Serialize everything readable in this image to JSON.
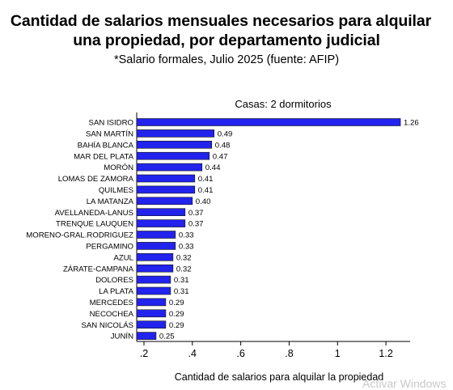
{
  "title_line1": "Cantidad de salarios mensuales necesarios para alquilar",
  "title_line2": "una propiedad, por departamento judicial",
  "subtitle": "*Salario formales, Julio 2025 (fuente: AFIP)",
  "watermark": "Activar Windows",
  "chart_data": {
    "type": "bar",
    "orientation": "horizontal",
    "title": "Casas: 2 dormitorios",
    "xlabel": "Cantidad de salarios para alquilar la propiedad",
    "ylabel": "",
    "bar_color": "#2323ee",
    "xlim": [
      0.17,
      1.3
    ],
    "xticks": [
      0.2,
      0.4,
      0.6,
      0.8,
      1.0,
      1.2
    ],
    "xtick_labels": [
      ".2",
      ".4",
      ".6",
      ".8",
      "1",
      "1.2"
    ],
    "grid": false,
    "categories": [
      "SAN ISIDRO",
      "SAN MARTÍN",
      "BAHÍA BLANCA",
      "MAR DEL PLATA",
      "MORÓN",
      "LOMAS DE ZAMORA",
      "QUILMES",
      "LA MATANZA",
      "AVELLANEDA-LANUS",
      "TRENQUE LAUQUEN",
      "MORENO-GRAL.RODRIGUEZ",
      "PERGAMINO",
      "AZUL",
      "ZÁRATE-CAMPANA",
      "DOLORES",
      "LA PLATA",
      "MERCEDES",
      "NECOCHEA",
      "SAN NICOLÁS",
      "JUNÍN"
    ],
    "values": [
      1.26,
      0.49,
      0.48,
      0.47,
      0.44,
      0.41,
      0.41,
      0.4,
      0.37,
      0.37,
      0.33,
      0.33,
      0.32,
      0.32,
      0.31,
      0.31,
      0.29,
      0.29,
      0.29,
      0.25
    ],
    "value_labels": [
      "1.26",
      "0.49",
      "0.48",
      "0.47",
      "0.44",
      "0.41",
      "0.41",
      "0.40",
      "0.37",
      "0.37",
      "0.33",
      "0.33",
      "0.32",
      "0.32",
      "0.31",
      "0.31",
      "0.29",
      "0.29",
      "0.29",
      "0.25"
    ]
  }
}
